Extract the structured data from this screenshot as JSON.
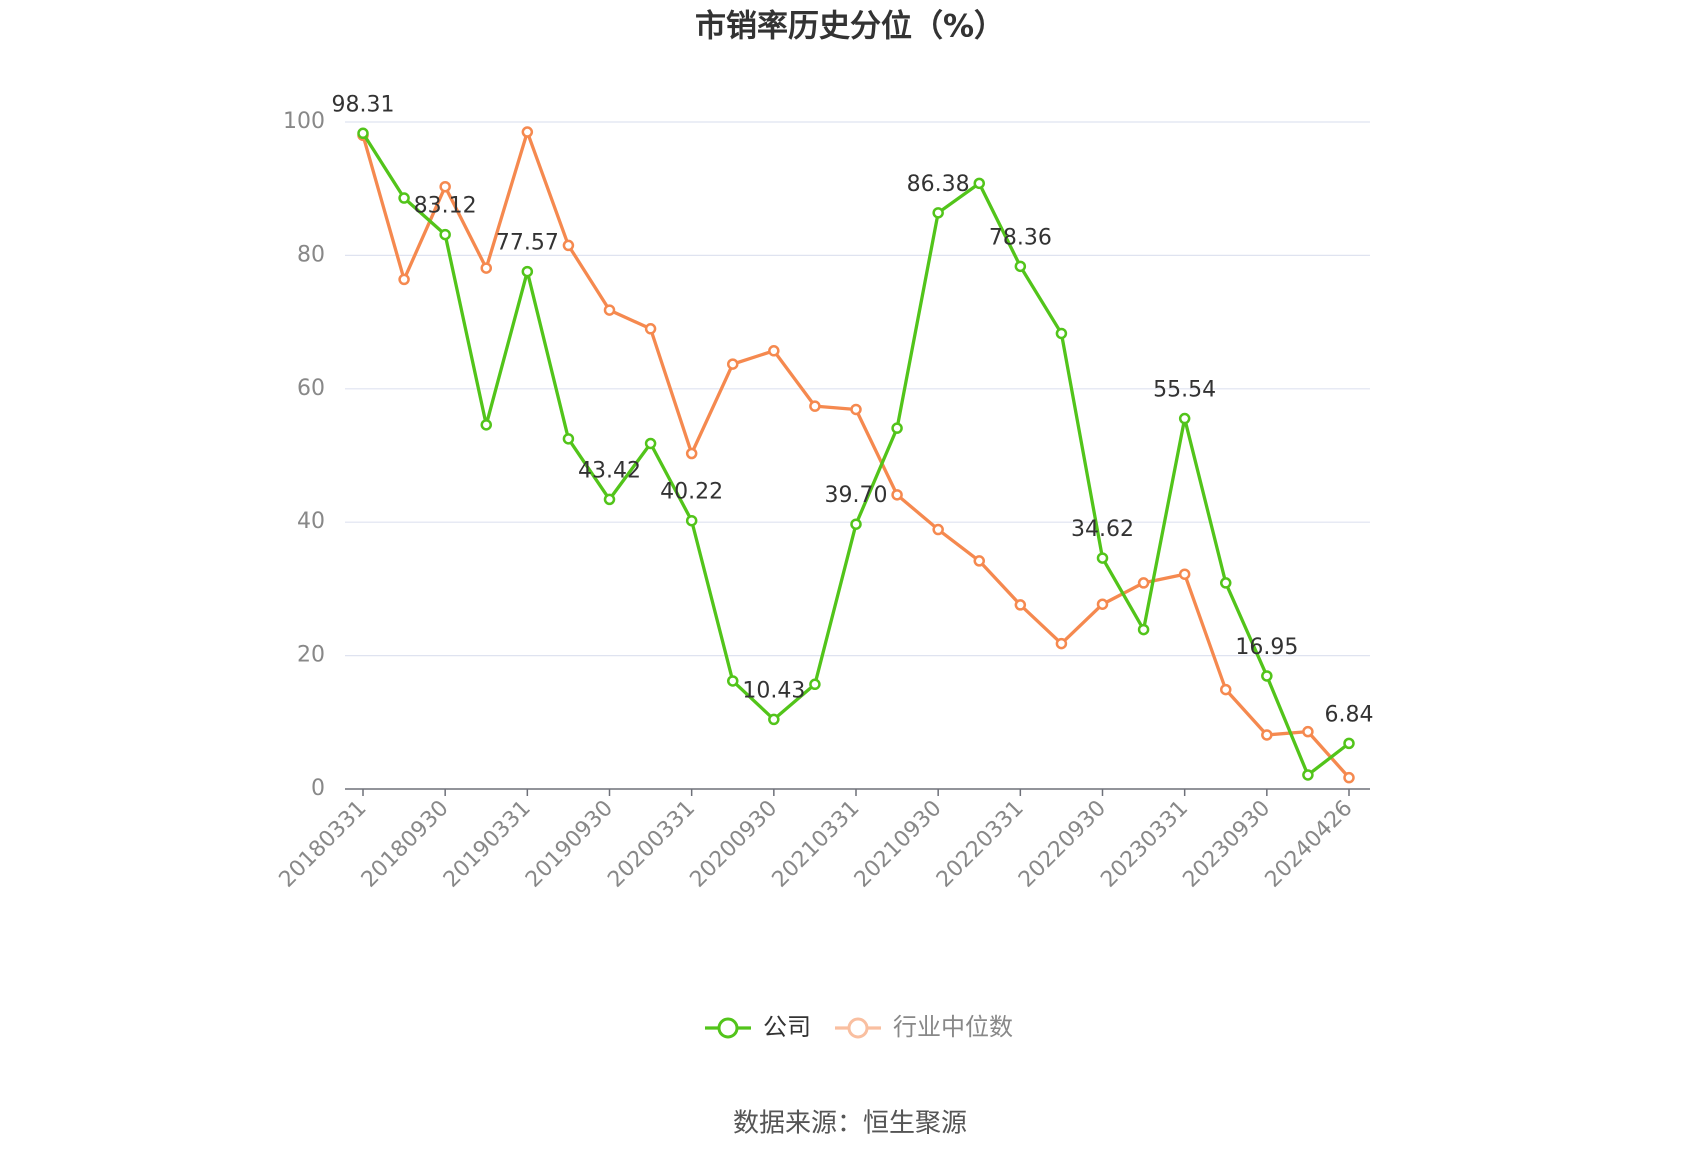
{
  "chart_data": {
    "type": "line",
    "title": "市销率历史分位（%）",
    "categories": [
      "20180331",
      null,
      "20180930",
      null,
      "20190331",
      null,
      "20190930",
      null,
      "20200331",
      null,
      "20200930",
      null,
      "20210331",
      null,
      "20210930",
      null,
      "20220331",
      null,
      "20220930",
      null,
      "20230331",
      null,
      "20230930",
      null,
      "20240426"
    ],
    "series": [
      {
        "name": "公司",
        "color": "#52c41a",
        "values": [
          98.31,
          88.6,
          83.12,
          54.6,
          77.57,
          52.5,
          43.42,
          51.8,
          40.22,
          16.2,
          10.43,
          15.7,
          39.7,
          54.1,
          86.38,
          90.8,
          78.36,
          68.3,
          34.62,
          23.9,
          55.54,
          30.9,
          16.95,
          2.1,
          6.84
        ],
        "value_labels": [
          "98.31",
          null,
          "83.12",
          null,
          "77.57",
          null,
          "43.42",
          null,
          "40.22",
          null,
          "10.43",
          null,
          "39.70",
          null,
          "86.38",
          null,
          "78.36",
          null,
          "34.62",
          null,
          "55.54",
          null,
          "16.95",
          null,
          "6.84"
        ]
      },
      {
        "name": "行业中位数",
        "color": "#f5894f",
        "values": [
          98.0,
          76.4,
          90.3,
          78.1,
          98.5,
          81.5,
          71.8,
          69.0,
          50.3,
          63.7,
          65.7,
          57.4,
          56.9,
          44.1,
          38.9,
          34.2,
          27.6,
          21.8,
          27.7,
          30.9,
          32.2,
          14.9,
          8.1,
          8.6,
          1.7
        ]
      }
    ],
    "ylim": [
      0,
      100
    ],
    "yticks": [
      0,
      20,
      40,
      60,
      80,
      100
    ],
    "grid": true,
    "source": "数据来源：恒生聚源"
  }
}
